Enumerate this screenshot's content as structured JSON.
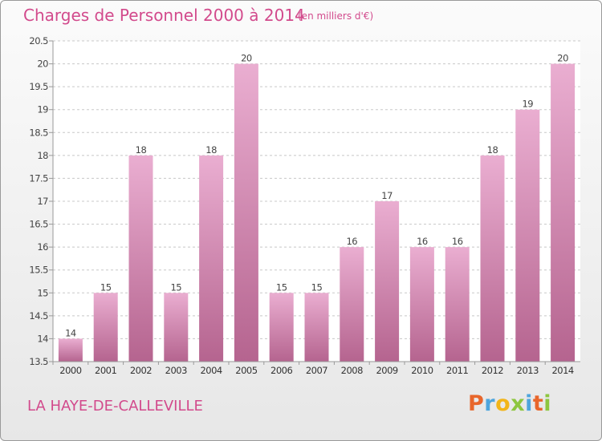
{
  "title": "Charges de Personnel 2000 à 2014",
  "subtitle": "(en milliers d'€)",
  "commune": "LA HAYE-DE-CALLEVILLE",
  "logo": {
    "letters": [
      "P",
      "r",
      "o",
      "x",
      "i",
      "t",
      "i"
    ],
    "colors": [
      "#e8662b",
      "#4ea5dd",
      "#f2b51a",
      "#8dc63f",
      "#4ea5dd",
      "#e8662b",
      "#8dc63f"
    ]
  },
  "colors": {
    "title": "#d24a8c",
    "bar_top": "#eaaed1",
    "bar_bottom": "#b5648f"
  },
  "chart_data": {
    "type": "bar",
    "categories": [
      "2000",
      "2001",
      "2002",
      "2003",
      "2004",
      "2005",
      "2006",
      "2007",
      "2008",
      "2009",
      "2010",
      "2011",
      "2012",
      "2013",
      "2014"
    ],
    "values": [
      14,
      15,
      18,
      15,
      18,
      20,
      15,
      15,
      16,
      17,
      16,
      16,
      18,
      19,
      20
    ],
    "value_labels": [
      "14",
      "15",
      "18",
      "15",
      "18",
      "20",
      "15",
      "15",
      "16",
      "17",
      "16",
      "16",
      "18",
      "19",
      "20"
    ],
    "y_ticks": [
      13.5,
      14,
      14.5,
      15,
      15.5,
      16,
      16.5,
      17,
      17.5,
      18,
      18.5,
      19,
      19.5,
      20,
      20.5
    ],
    "y_tick_labels": [
      "13.5",
      "14",
      "14.5",
      "15",
      "15.5",
      "16",
      "16.5",
      "17",
      "17.5",
      "18",
      "18.5",
      "19",
      "19.5",
      "20",
      "20.5"
    ],
    "ylim": [
      13.5,
      20.5
    ],
    "grid": "horizontal dashed",
    "legend": "none"
  }
}
